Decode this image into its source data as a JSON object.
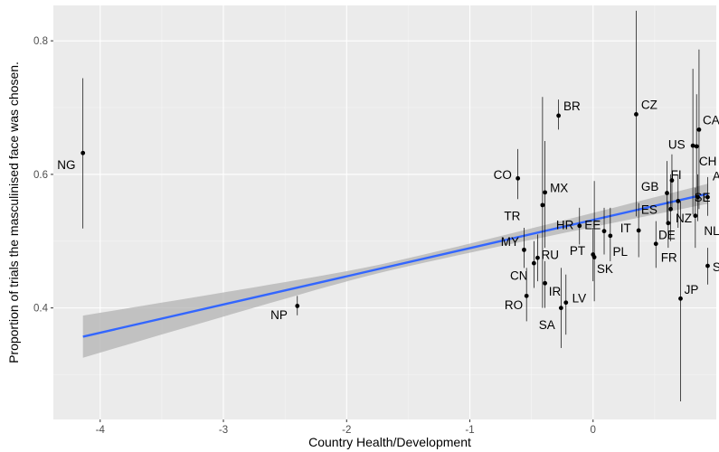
{
  "chart_data": {
    "type": "scatter",
    "title": "",
    "xlabel": "Country Health/Development",
    "ylabel": "Proportion of trials the masculinised face was chosen.",
    "xlim": [
      -4.38,
      1.0
    ],
    "ylim": [
      0.233,
      0.853
    ],
    "x_ticks": [
      -4,
      -3,
      -2,
      -1,
      0
    ],
    "x_tick_labels": [
      "-4",
      "-3",
      "-2",
      "-1",
      "0"
    ],
    "y_ticks": [
      0.4,
      0.6,
      0.8
    ],
    "y_tick_labels": [
      "0.4",
      "0.6",
      "0.8"
    ],
    "grid": true,
    "legend": "none",
    "colors": {
      "panel": "#ebebeb",
      "grid_major": "#ffffff",
      "grid_minor": "#f5f5f5",
      "point": "#000000",
      "fit_line": "#3366ff",
      "confidence_band": "#b3b3b3"
    },
    "regression": {
      "x_start": -4.14,
      "y_start": 0.357,
      "x_end": 0.93,
      "y_end": 0.571,
      "band_start": [
        0.326,
        0.389
      ],
      "band_end": [
        0.556,
        0.586
      ]
    },
    "points": [
      {
        "label": "NG",
        "x": -4.14,
        "y": 0.632,
        "low": 0.519,
        "high": 0.744,
        "lx": -4.2,
        "ly": 0.615,
        "anchor": "end"
      },
      {
        "label": "NP",
        "x": -2.4,
        "y": 0.403,
        "low": 0.389,
        "high": 0.418,
        "lx": -2.48,
        "ly": 0.39,
        "anchor": "end"
      },
      {
        "label": "BR",
        "x": -0.28,
        "y": 0.688,
        "low": 0.667,
        "high": 0.712,
        "lx": -0.24,
        "ly": 0.703,
        "anchor": "start"
      },
      {
        "label": "CZ",
        "x": 0.35,
        "y": 0.69,
        "low": 0.537,
        "high": 0.845,
        "lx": 0.39,
        "ly": 0.705,
        "anchor": "start"
      },
      {
        "label": "CA",
        "x": 0.86,
        "y": 0.667,
        "low": 0.548,
        "high": 0.787,
        "lx": 0.89,
        "ly": 0.682,
        "anchor": "start"
      },
      {
        "label": "US",
        "x": 0.81,
        "y": 0.643,
        "low": 0.54,
        "high": 0.758,
        "lx": 0.61,
        "ly": 0.645,
        "anchor": "start"
      },
      {
        "label": "CH",
        "x": 0.84,
        "y": 0.642,
        "low": 0.56,
        "high": 0.72,
        "lx": 0.86,
        "ly": 0.62,
        "anchor": "start"
      },
      {
        "label": "CO",
        "x": -0.61,
        "y": 0.594,
        "low": 0.563,
        "high": 0.638,
        "lx": -0.66,
        "ly": 0.6,
        "anchor": "end"
      },
      {
        "label": "FI",
        "x": 0.64,
        "y": 0.591,
        "low": 0.55,
        "high": 0.63,
        "lx": 0.63,
        "ly": 0.6,
        "anchor": "start"
      },
      {
        "label": "MX",
        "x": -0.39,
        "y": 0.573,
        "low": 0.49,
        "high": 0.65,
        "lx": -0.35,
        "ly": 0.58,
        "anchor": "start"
      },
      {
        "label": "GB",
        "x": 0.6,
        "y": 0.572,
        "low": 0.53,
        "high": 0.62,
        "lx": 0.39,
        "ly": 0.582,
        "anchor": "start"
      },
      {
        "label": "AU",
        "x": 0.93,
        "y": 0.566,
        "low": 0.538,
        "high": 0.596,
        "lx": 0.97,
        "ly": 0.598,
        "anchor": "start"
      },
      {
        "label": "SE",
        "x": 0.85,
        "y": 0.566,
        "low": 0.53,
        "high": 0.6,
        "lx": 0.82,
        "ly": 0.566,
        "anchor": "start"
      },
      {
        "label": "NZ",
        "x": 0.69,
        "y": 0.56,
        "low": 0.52,
        "high": 0.6,
        "lx": 0.67,
        "ly": 0.535,
        "anchor": "start"
      },
      {
        "label": "TR",
        "x": -0.41,
        "y": 0.554,
        "low": 0.4,
        "high": 0.716,
        "lx": -0.59,
        "ly": 0.538,
        "anchor": "end"
      },
      {
        "label": "ES",
        "x": 0.63,
        "y": 0.548,
        "low": 0.5,
        "high": 0.6,
        "lx": 0.39,
        "ly": 0.548,
        "anchor": "start"
      },
      {
        "label": "NL",
        "x": 0.83,
        "y": 0.538,
        "low": 0.49,
        "high": 0.58,
        "lx": 0.9,
        "ly": 0.516,
        "anchor": "start"
      },
      {
        "label": "HR",
        "x": -0.11,
        "y": 0.523,
        "low": 0.495,
        "high": 0.55,
        "lx": -0.3,
        "ly": 0.525,
        "anchor": "start"
      },
      {
        "label": "EE",
        "x": 0.09,
        "y": 0.515,
        "low": 0.48,
        "high": 0.55,
        "lx": -0.07,
        "ly": 0.525,
        "anchor": "start"
      },
      {
        "label": "IT",
        "x": 0.37,
        "y": 0.516,
        "low": 0.476,
        "high": 0.557,
        "lx": 0.22,
        "ly": 0.52,
        "anchor": "start"
      },
      {
        "label": "DE",
        "x": 0.61,
        "y": 0.527,
        "low": 0.49,
        "high": 0.56,
        "lx": 0.53,
        "ly": 0.51,
        "anchor": "start"
      },
      {
        "label": "PL",
        "x": 0.14,
        "y": 0.508,
        "low": 0.47,
        "high": 0.55,
        "lx": 0.16,
        "ly": 0.485,
        "anchor": "start"
      },
      {
        "label": "MY",
        "x": -0.56,
        "y": 0.487,
        "low": 0.46,
        "high": 0.52,
        "lx": -0.6,
        "ly": 0.5,
        "anchor": "end"
      },
      {
        "label": "PT",
        "x": 0.0,
        "y": 0.48,
        "low": 0.44,
        "high": 0.52,
        "lx": -0.19,
        "ly": 0.486,
        "anchor": "start"
      },
      {
        "label": "FR",
        "x": 0.51,
        "y": 0.496,
        "low": 0.46,
        "high": 0.53,
        "lx": 0.55,
        "ly": 0.476,
        "anchor": "start"
      },
      {
        "label": "RU",
        "x": -0.45,
        "y": 0.475,
        "low": 0.44,
        "high": 0.51,
        "lx": -0.42,
        "ly": 0.48,
        "anchor": "start"
      },
      {
        "label": "SK",
        "x": 0.01,
        "y": 0.476,
        "low": 0.41,
        "high": 0.59,
        "lx": 0.03,
        "ly": 0.459,
        "anchor": "start"
      },
      {
        "label": "CN",
        "x": -0.48,
        "y": 0.467,
        "low": 0.43,
        "high": 0.5,
        "lx": -0.53,
        "ly": 0.449,
        "anchor": "end"
      },
      {
        "label": "SG",
        "x": 0.93,
        "y": 0.463,
        "low": 0.435,
        "high": 0.49,
        "lx": 0.97,
        "ly": 0.462,
        "anchor": "start"
      },
      {
        "label": "IR",
        "x": -0.39,
        "y": 0.437,
        "low": 0.4,
        "high": 0.47,
        "lx": -0.36,
        "ly": 0.425,
        "anchor": "start"
      },
      {
        "label": "RO",
        "x": -0.54,
        "y": 0.418,
        "low": 0.38,
        "high": 0.46,
        "lx": -0.57,
        "ly": 0.405,
        "anchor": "end"
      },
      {
        "label": "LV",
        "x": -0.22,
        "y": 0.408,
        "low": 0.36,
        "high": 0.45,
        "lx": -0.17,
        "ly": 0.415,
        "anchor": "start"
      },
      {
        "label": "SA",
        "x": -0.26,
        "y": 0.4,
        "low": 0.34,
        "high": 0.46,
        "lx": -0.44,
        "ly": 0.375,
        "anchor": "start"
      },
      {
        "label": "JP",
        "x": 0.71,
        "y": 0.414,
        "low": 0.26,
        "high": 0.56,
        "lx": 0.74,
        "ly": 0.428,
        "anchor": "start"
      }
    ]
  }
}
